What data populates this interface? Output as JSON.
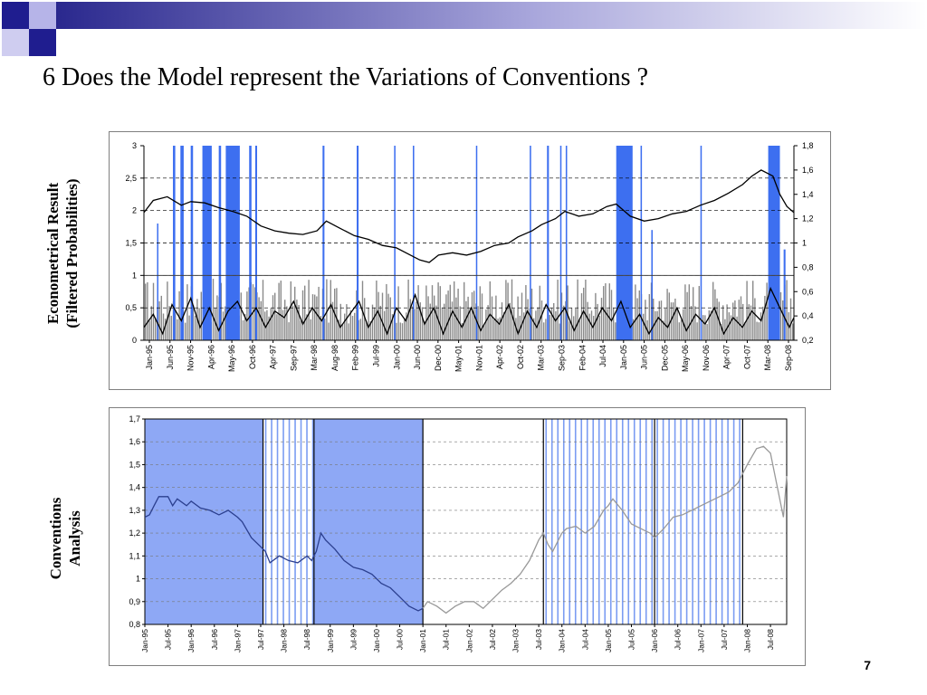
{
  "slide": {
    "title": "6 Does the Model represent the Variations of Conventions ?",
    "side_label_top": [
      "Econometrical Result",
      "(Filtered Probabilities)"
    ],
    "side_label_bottom": [
      "Conventions",
      "Analysis"
    ],
    "page_number": "7"
  },
  "colors": {
    "regime_blue": "#3d6ff0",
    "probability_gray": "#8a8a8a",
    "shade_blue": "#8ea8f5",
    "index_dark": "#2b3f8f",
    "index_light": "#999999",
    "stripe_blue": "#7b9cf2",
    "deco_navy": "#1f1d8f",
    "deco_lavender": "#b6b4e8"
  },
  "chart_data": [
    {
      "type": "line",
      "title": "",
      "left_axis_ticks": [
        "0",
        "0,5",
        "1",
        "1,5",
        "2",
        "2,5",
        "3"
      ],
      "right_axis_ticks": [
        "0,2",
        "0,4",
        "0,6",
        "0,8",
        "1",
        "1,2",
        "1,4",
        "1,6",
        "1,8"
      ],
      "ylim_left": [
        0,
        3
      ],
      "ylim_right": [
        0.2,
        1.8
      ],
      "x_ticks": [
        "Jan-95",
        "Jun-95",
        "Nov-95",
        "Apr-96",
        "May-96",
        "Oct-96",
        "Apr-97",
        "Sep-97",
        "Mar-98",
        "Aug-98",
        "Feb-99",
        "Jul-99",
        "Jan-00",
        "Jun-00",
        "Dec-00",
        "May-01",
        "Nov-01",
        "Apr-02",
        "Oct-02",
        "Mar-03",
        "Sep-03",
        "Feb-04",
        "Jul-04",
        "Jan-05",
        "Jun-05",
        "Dec-05",
        "May-06",
        "Nov-06",
        "Apr-07",
        "Oct-07",
        "Mar-08",
        "Sep-08"
      ],
      "x_range": [
        1995.0,
        2008.9
      ],
      "grid": "dashed horizontal",
      "series": [
        {
          "axis": "right",
          "points": [
            [
              1995.0,
              1.25
            ],
            [
              1995.2,
              1.35
            ],
            [
              1995.5,
              1.38
            ],
            [
              1995.8,
              1.31
            ],
            [
              1996.0,
              1.34
            ],
            [
              1996.3,
              1.33
            ],
            [
              1996.6,
              1.29
            ],
            [
              1996.9,
              1.26
            ],
            [
              1997.2,
              1.22
            ],
            [
              1997.5,
              1.14
            ],
            [
              1997.8,
              1.1
            ],
            [
              1998.1,
              1.08
            ],
            [
              1998.4,
              1.07
            ],
            [
              1998.7,
              1.1
            ],
            [
              1998.9,
              1.18
            ],
            [
              1999.2,
              1.12
            ],
            [
              1999.5,
              1.06
            ],
            [
              1999.8,
              1.03
            ],
            [
              2000.1,
              0.98
            ],
            [
              2000.4,
              0.96
            ],
            [
              2000.7,
              0.9
            ],
            [
              2000.9,
              0.86
            ],
            [
              2001.1,
              0.84
            ],
            [
              2001.3,
              0.9
            ],
            [
              2001.6,
              0.92
            ],
            [
              2001.9,
              0.9
            ],
            [
              2002.2,
              0.93
            ],
            [
              2002.5,
              0.98
            ],
            [
              2002.8,
              1.0
            ],
            [
              2003.0,
              1.05
            ],
            [
              2003.3,
              1.1
            ],
            [
              2003.5,
              1.15
            ],
            [
              2003.8,
              1.2
            ],
            [
              2004.0,
              1.26
            ],
            [
              2004.3,
              1.22
            ],
            [
              2004.6,
              1.24
            ],
            [
              2004.9,
              1.3
            ],
            [
              2005.1,
              1.32
            ],
            [
              2005.4,
              1.22
            ],
            [
              2005.7,
              1.18
            ],
            [
              2006.0,
              1.2
            ],
            [
              2006.3,
              1.24
            ],
            [
              2006.6,
              1.26
            ],
            [
              2006.9,
              1.31
            ],
            [
              2007.2,
              1.35
            ],
            [
              2007.5,
              1.41
            ],
            [
              2007.8,
              1.48
            ],
            [
              2008.0,
              1.55
            ],
            [
              2008.2,
              1.6
            ],
            [
              2008.45,
              1.55
            ],
            [
              2008.6,
              1.4
            ],
            [
              2008.75,
              1.3
            ],
            [
              2008.9,
              1.25
            ]
          ]
        },
        {
          "axis": "left",
          "points": [
            [
              1995.0,
              0.2
            ],
            [
              1995.2,
              0.4
            ],
            [
              1995.4,
              0.1
            ],
            [
              1995.6,
              0.55
            ],
            [
              1995.8,
              0.3
            ],
            [
              1996.0,
              0.65
            ],
            [
              1996.2,
              0.2
            ],
            [
              1996.4,
              0.5
            ],
            [
              1996.6,
              0.15
            ],
            [
              1996.8,
              0.45
            ],
            [
              1997.0,
              0.6
            ],
            [
              1997.2,
              0.3
            ],
            [
              1997.4,
              0.5
            ],
            [
              1997.6,
              0.2
            ],
            [
              1997.8,
              0.45
            ],
            [
              1998.0,
              0.35
            ],
            [
              1998.2,
              0.6
            ],
            [
              1998.4,
              0.25
            ],
            [
              1998.6,
              0.5
            ],
            [
              1998.8,
              0.3
            ],
            [
              1999.0,
              0.55
            ],
            [
              1999.2,
              0.2
            ],
            [
              1999.4,
              0.4
            ],
            [
              1999.6,
              0.6
            ],
            [
              1999.8,
              0.2
            ],
            [
              2000.0,
              0.45
            ],
            [
              2000.2,
              0.1
            ],
            [
              2000.4,
              0.5
            ],
            [
              2000.6,
              0.3
            ],
            [
              2000.8,
              0.7
            ],
            [
              2001.0,
              0.25
            ],
            [
              2001.2,
              0.5
            ],
            [
              2001.4,
              0.1
            ],
            [
              2001.6,
              0.45
            ],
            [
              2001.8,
              0.2
            ],
            [
              2002.0,
              0.5
            ],
            [
              2002.2,
              0.15
            ],
            [
              2002.4,
              0.4
            ],
            [
              2002.6,
              0.25
            ],
            [
              2002.8,
              0.55
            ],
            [
              2003.0,
              0.1
            ],
            [
              2003.2,
              0.45
            ],
            [
              2003.4,
              0.2
            ],
            [
              2003.6,
              0.55
            ],
            [
              2003.8,
              0.3
            ],
            [
              2004.0,
              0.5
            ],
            [
              2004.2,
              0.15
            ],
            [
              2004.4,
              0.45
            ],
            [
              2004.6,
              0.2
            ],
            [
              2004.8,
              0.5
            ],
            [
              2005.0,
              0.3
            ],
            [
              2005.2,
              0.6
            ],
            [
              2005.4,
              0.2
            ],
            [
              2005.6,
              0.4
            ],
            [
              2005.8,
              0.1
            ],
            [
              2006.0,
              0.35
            ],
            [
              2006.2,
              0.2
            ],
            [
              2006.4,
              0.5
            ],
            [
              2006.6,
              0.15
            ],
            [
              2006.8,
              0.4
            ],
            [
              2007.0,
              0.25
            ],
            [
              2007.2,
              0.5
            ],
            [
              2007.4,
              0.1
            ],
            [
              2007.6,
              0.35
            ],
            [
              2007.8,
              0.2
            ],
            [
              2008.0,
              0.45
            ],
            [
              2008.2,
              0.3
            ],
            [
              2008.4,
              0.8
            ],
            [
              2008.6,
              0.5
            ],
            [
              2008.8,
              0.2
            ],
            [
              2008.9,
              0.35
            ]
          ]
        }
      ],
      "regime_intervals": [
        [
          1995.28,
          1995.3
        ],
        [
          1995.62,
          1995.67
        ],
        [
          1995.78,
          1995.85
        ],
        [
          1996.0,
          1996.05
        ],
        [
          1996.25,
          1996.45
        ],
        [
          1996.6,
          1996.65
        ],
        [
          1996.75,
          1997.05
        ],
        [
          1997.25,
          1997.3
        ],
        [
          1997.38,
          1997.42
        ],
        [
          1998.82,
          1998.86
        ],
        [
          1999.55,
          1999.59
        ],
        [
          2000.35,
          2000.38
        ],
        [
          2000.75,
          2000.78
        ],
        [
          2002.1,
          2002.12
        ],
        [
          2003.25,
          2003.28
        ],
        [
          2003.62,
          2003.66
        ],
        [
          2003.9,
          2003.93
        ],
        [
          2004.02,
          2004.05
        ],
        [
          2005.1,
          2005.45
        ],
        [
          2005.62,
          2005.65
        ],
        [
          2005.85,
          2005.88
        ],
        [
          2006.9,
          2006.93
        ],
        [
          2008.35,
          2008.6
        ],
        [
          2008.68,
          2008.72
        ]
      ],
      "regime_heights": [
        1.8,
        3,
        3,
        3,
        3,
        3,
        3,
        3,
        3,
        3,
        3,
        3,
        3,
        3,
        3,
        3,
        3,
        3,
        3,
        3,
        1.7,
        3,
        3,
        1.4
      ]
    },
    {
      "type": "line",
      "title": "",
      "y_ticks": [
        "0,8",
        "0,9",
        "1",
        "1,1",
        "1,2",
        "1,3",
        "1,4",
        "1,5",
        "1,6",
        "1,7"
      ],
      "ylim": [
        0.8,
        1.7
      ],
      "x_ticks": [
        "Jan-95",
        "Jul-95",
        "Jan-96",
        "Jul-96",
        "Jan-97",
        "Jul-97",
        "Jan-98",
        "Jul-98",
        "Jan-99",
        "Jul-99",
        "Jan-00",
        "Jul-00",
        "Jan-01",
        "Jul-01",
        "Jan-02",
        "Jul-02",
        "Jan-03",
        "Jul-03",
        "Jan-04",
        "Jul-04",
        "Jan-05",
        "Jul-05",
        "Jan-06",
        "Jul-06",
        "Jan-07",
        "Jul-07",
        "Jan-08",
        "Jul-08"
      ],
      "x_range": [
        1995.0,
        2008.85
      ],
      "grid": "dashed horizontal",
      "shaded_periods": [
        [
          1995.0,
          1997.55
        ],
        [
          1998.65,
          2001.0
        ]
      ],
      "striped_periods": [
        [
          1997.55,
          1998.65
        ],
        [
          2003.6,
          2006.0
        ],
        [
          2006.0,
          2007.9
        ]
      ],
      "divider_dates": [
        1997.55,
        1998.65,
        2001.0,
        2003.6,
        2006.0,
        2007.9
      ],
      "series": [
        {
          "segment": "to-2001",
          "points": [
            [
              1995.0,
              1.27
            ],
            [
              1995.1,
              1.28
            ],
            [
              1995.2,
              1.32
            ],
            [
              1995.3,
              1.36
            ],
            [
              1995.5,
              1.36
            ],
            [
              1995.6,
              1.32
            ],
            [
              1995.7,
              1.35
            ],
            [
              1995.9,
              1.32
            ],
            [
              1996.0,
              1.34
            ],
            [
              1996.2,
              1.31
            ],
            [
              1996.4,
              1.3
            ],
            [
              1996.6,
              1.28
            ],
            [
              1996.8,
              1.3
            ],
            [
              1997.0,
              1.27
            ],
            [
              1997.1,
              1.25
            ],
            [
              1997.3,
              1.18
            ],
            [
              1997.5,
              1.14
            ],
            [
              1997.6,
              1.12
            ],
            [
              1997.7,
              1.07
            ],
            [
              1997.9,
              1.1
            ],
            [
              1998.1,
              1.08
            ],
            [
              1998.3,
              1.07
            ],
            [
              1998.5,
              1.1
            ],
            [
              1998.6,
              1.08
            ],
            [
              1998.7,
              1.12
            ],
            [
              1998.8,
              1.2
            ],
            [
              1998.9,
              1.17
            ],
            [
              1999.1,
              1.13
            ],
            [
              1999.3,
              1.08
            ],
            [
              1999.5,
              1.05
            ],
            [
              1999.7,
              1.04
            ],
            [
              1999.9,
              1.02
            ],
            [
              2000.1,
              0.98
            ],
            [
              2000.3,
              0.96
            ],
            [
              2000.5,
              0.92
            ],
            [
              2000.7,
              0.88
            ],
            [
              2000.9,
              0.86
            ],
            [
              2001.0,
              0.87
            ]
          ]
        },
        {
          "segment": "2001-on",
          "points": [
            [
              2001.0,
              0.87
            ],
            [
              2001.1,
              0.9
            ],
            [
              2001.3,
              0.88
            ],
            [
              2001.5,
              0.85
            ],
            [
              2001.7,
              0.88
            ],
            [
              2001.9,
              0.9
            ],
            [
              2002.1,
              0.9
            ],
            [
              2002.3,
              0.87
            ],
            [
              2002.5,
              0.91
            ],
            [
              2002.7,
              0.95
            ],
            [
              2002.9,
              0.98
            ],
            [
              2003.1,
              1.02
            ],
            [
              2003.3,
              1.08
            ],
            [
              2003.5,
              1.17
            ],
            [
              2003.6,
              1.2
            ],
            [
              2003.7,
              1.15
            ],
            [
              2003.8,
              1.12
            ],
            [
              2004.0,
              1.2
            ],
            [
              2004.1,
              1.22
            ],
            [
              2004.3,
              1.23
            ],
            [
              2004.5,
              1.2
            ],
            [
              2004.7,
              1.23
            ],
            [
              2004.9,
              1.3
            ],
            [
              2005.0,
              1.32
            ],
            [
              2005.1,
              1.35
            ],
            [
              2005.3,
              1.3
            ],
            [
              2005.5,
              1.24
            ],
            [
              2005.7,
              1.22
            ],
            [
              2005.9,
              1.2
            ],
            [
              2006.0,
              1.18
            ],
            [
              2006.2,
              1.22
            ],
            [
              2006.4,
              1.27
            ],
            [
              2006.6,
              1.28
            ],
            [
              2006.8,
              1.3
            ],
            [
              2007.0,
              1.32
            ],
            [
              2007.2,
              1.34
            ],
            [
              2007.4,
              1.36
            ],
            [
              2007.6,
              1.38
            ],
            [
              2007.8,
              1.42
            ],
            [
              2008.0,
              1.5
            ],
            [
              2008.2,
              1.57
            ],
            [
              2008.35,
              1.58
            ],
            [
              2008.5,
              1.55
            ],
            [
              2008.6,
              1.45
            ],
            [
              2008.7,
              1.35
            ],
            [
              2008.78,
              1.27
            ],
            [
              2008.85,
              1.45
            ]
          ]
        }
      ]
    }
  ]
}
